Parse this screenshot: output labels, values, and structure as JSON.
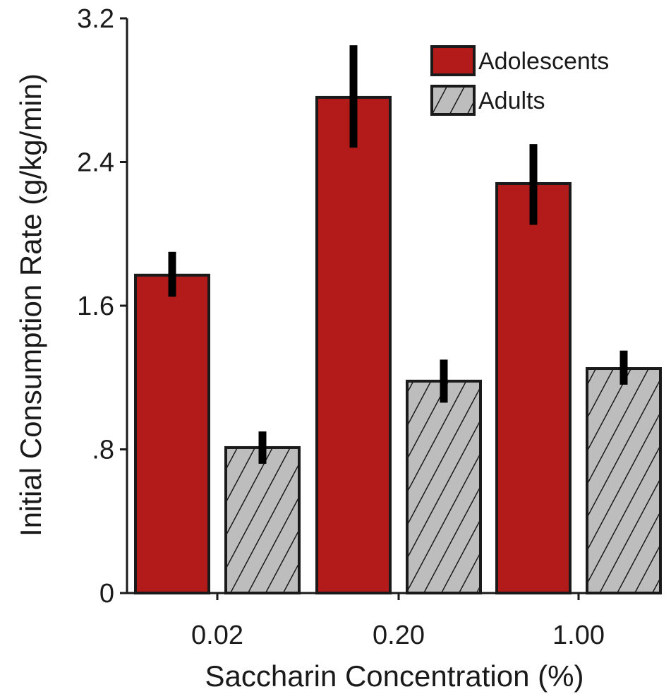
{
  "chart_data": {
    "type": "bar",
    "categories": [
      "0.02",
      "0.20",
      "1.00"
    ],
    "series": [
      {
        "name": "Adolescents",
        "values": [
          1.77,
          2.76,
          2.28
        ],
        "error_low": [
          1.65,
          2.48,
          2.05
        ],
        "error_high": [
          1.9,
          3.05,
          2.5
        ],
        "color": "#b31b1b",
        "pattern": "solid"
      },
      {
        "name": "Adults",
        "values": [
          0.81,
          1.18,
          1.25
        ],
        "error_low": [
          0.72,
          1.06,
          1.16
        ],
        "error_high": [
          0.9,
          1.3,
          1.35
        ],
        "color": "#bdbdbd",
        "pattern": "hatched"
      }
    ],
    "xlabel": "Saccharin Concentration (%)",
    "ylabel": "Initial Consumption Rate (g/kg/min)",
    "ylim": [
      0,
      3.2
    ],
    "yticks": [
      0,
      0.8,
      1.6,
      2.4,
      3.2
    ],
    "ytick_labels": [
      "0",
      ".8",
      "1.6",
      "2.4",
      "3.2"
    ],
    "legend_position": "top-right",
    "grid": false
  }
}
